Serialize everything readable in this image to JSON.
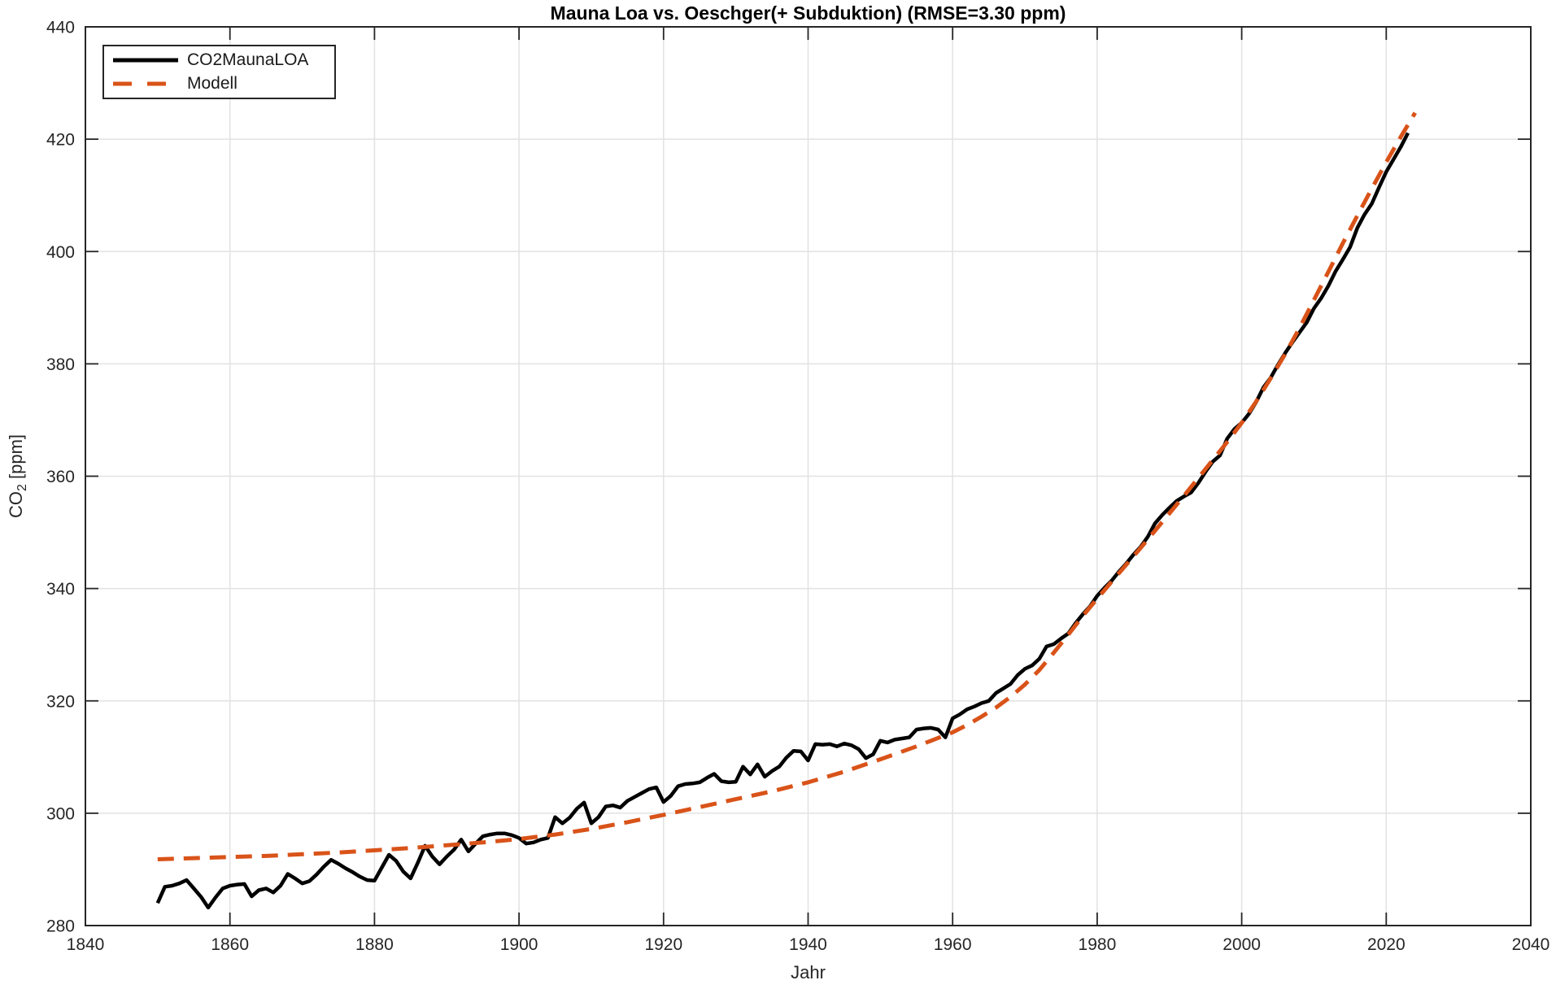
{
  "colors": {
    "background": "#FFFFFF",
    "axis": "#262626",
    "grid": "#E2E2E2",
    "tick_label": "#262626",
    "title_color": "#000000",
    "series_black": "#000000",
    "series_orange": "#D95319"
  },
  "chart_data": {
    "type": "line",
    "title": "Mauna Loa vs. Oeschger(+ Subduktion) (RMSE=3.30 ppm)",
    "xlabel": "Jahr",
    "ylabel": "CO2 [ppm]",
    "ylabel_parts": {
      "base": "CO",
      "sub": "2",
      "rest": " [ppm]"
    },
    "xlim": [
      1840,
      2040
    ],
    "ylim": [
      280,
      440
    ],
    "xticks": [
      1840,
      1860,
      1880,
      1900,
      1920,
      1940,
      1960,
      1980,
      2000,
      2020,
      2040
    ],
    "yticks": [
      280,
      300,
      320,
      340,
      360,
      380,
      400,
      420,
      440
    ],
    "grid": true,
    "legend_position": "top-left",
    "series": [
      {
        "name": "CO2MaunaLOA",
        "color": "#000000",
        "style": "solid",
        "line_width": 4.5,
        "x_start": 1850,
        "x_step": 1,
        "values": [
          284.0,
          286.9,
          287.1,
          287.5,
          288.1,
          286.6,
          285.1,
          283.2,
          285.0,
          286.6,
          287.1,
          287.3,
          287.4,
          285.2,
          286.3,
          286.6,
          285.9,
          287.1,
          289.2,
          288.4,
          287.5,
          287.9,
          289.1,
          290.5,
          291.7,
          291.0,
          290.2,
          289.5,
          288.7,
          288.1,
          288.0,
          290.3,
          292.6,
          291.5,
          289.6,
          288.4,
          291.2,
          294.2,
          292.3,
          290.9,
          292.3,
          293.5,
          295.3,
          293.2,
          294.6,
          295.9,
          296.2,
          296.4,
          296.4,
          296.1,
          295.6,
          294.6,
          294.8,
          295.3,
          295.6,
          299.3,
          298.2,
          299.2,
          300.8,
          301.9,
          298.2,
          299.3,
          301.2,
          301.4,
          301.0,
          302.2,
          302.9,
          303.6,
          304.3,
          304.6,
          302.0,
          303.1,
          304.8,
          305.2,
          305.3,
          305.5,
          306.3,
          307.0,
          305.7,
          305.5,
          305.6,
          308.3,
          306.9,
          308.7,
          306.5,
          307.5,
          308.3,
          309.9,
          311.1,
          311.0,
          309.4,
          312.3,
          312.2,
          312.3,
          311.9,
          312.4,
          312.1,
          311.4,
          309.8,
          310.5,
          312.9,
          312.6,
          313.1,
          313.3,
          313.5,
          314.9,
          315.1,
          315.2,
          314.9,
          313.5,
          316.9,
          317.6,
          318.5,
          319.0,
          319.6,
          320.0,
          321.4,
          322.2,
          323.0,
          324.6,
          325.7,
          326.3,
          327.5,
          329.7,
          330.1,
          331.1,
          332.0,
          333.8,
          335.4,
          336.8,
          338.7,
          340.1,
          341.4,
          343.0,
          344.4,
          346.0,
          347.4,
          349.2,
          351.6,
          353.1,
          354.4,
          355.6,
          356.4,
          357.1,
          358.8,
          360.8,
          362.6,
          363.7,
          366.7,
          368.4,
          369.5,
          371.1,
          373.2,
          375.8,
          377.5,
          379.8,
          381.9,
          383.8,
          385.6,
          387.4,
          389.9,
          391.7,
          393.9,
          396.5,
          398.6,
          400.8,
          404.2,
          406.6,
          408.5,
          411.4,
          414.2,
          416.4,
          418.6,
          421.1
        ]
      },
      {
        "name": "Modell",
        "color": "#D95319",
        "style": "dashed",
        "line_width": 5,
        "years": [
          1850,
          1855,
          1860,
          1865,
          1870,
          1875,
          1880,
          1885,
          1890,
          1895,
          1900,
          1905,
          1910,
          1915,
          1920,
          1925,
          1930,
          1935,
          1940,
          1945,
          1950,
          1955,
          1960,
          1962,
          1964,
          1966,
          1968,
          1970,
          1972,
          1974,
          1976,
          1978,
          1980,
          1982,
          1984,
          1986,
          1988,
          1990,
          1992,
          1994,
          1996,
          1998,
          2000,
          2002,
          2004,
          2006,
          2008,
          2010,
          2012,
          2014,
          2016,
          2018,
          2020,
          2022,
          2024
        ],
        "values": [
          291.8,
          292.0,
          292.2,
          292.4,
          292.7,
          293.0,
          293.4,
          293.8,
          294.3,
          294.8,
          295.4,
          296.2,
          297.2,
          298.4,
          299.7,
          301.1,
          302.5,
          303.9,
          305.5,
          307.4,
          309.6,
          311.9,
          314.4,
          315.7,
          317.2,
          318.8,
          320.7,
          322.9,
          325.5,
          328.6,
          331.8,
          335.1,
          338.2,
          341.2,
          344.2,
          347.2,
          350.3,
          353.4,
          356.5,
          359.7,
          362.9,
          366.1,
          369.5,
          373.3,
          377.4,
          381.7,
          386.4,
          391.4,
          396.4,
          401.5,
          406.4,
          411.2,
          415.9,
          420.4,
          424.7
        ]
      }
    ]
  }
}
